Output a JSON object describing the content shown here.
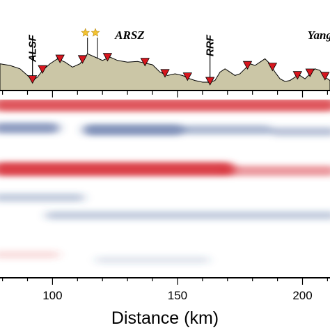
{
  "chart_data": [
    {
      "type": "area",
      "panel": "topography",
      "xlim": [
        79,
        211
      ],
      "fill_color": "#cbc6a6",
      "line_color": "#000000",
      "profile": {
        "x": [
          79,
          83,
          87,
          90,
          92,
          94,
          96,
          99,
          102,
          105,
          108,
          111,
          114,
          117,
          120,
          123,
          126,
          130,
          134,
          137,
          140,
          143,
          146,
          149,
          152,
          155,
          157,
          160,
          163,
          165,
          167,
          169,
          171,
          173,
          175,
          177,
          179,
          181,
          183,
          185,
          187,
          189,
          191,
          193,
          195,
          197,
          199,
          201,
          203,
          205,
          207,
          209,
          211
        ],
        "elevation": [
          0.55,
          0.5,
          0.4,
          0.2,
          0.05,
          0.15,
          0.35,
          0.55,
          0.7,
          0.6,
          0.45,
          0.55,
          0.85,
          0.75,
          0.65,
          0.75,
          0.65,
          0.6,
          0.62,
          0.57,
          0.52,
          0.3,
          0.2,
          0.25,
          0.2,
          0.1,
          0.05,
          0.0,
          0.0,
          0.05,
          0.3,
          0.4,
          0.3,
          0.2,
          0.25,
          0.4,
          0.55,
          0.5,
          0.6,
          0.7,
          0.55,
          0.3,
          0.1,
          0.02,
          0.05,
          0.15,
          0.2,
          0.1,
          0.25,
          0.4,
          0.35,
          0.15,
          0.05
        ]
      },
      "stations": [
        92,
        96,
        103,
        112,
        122,
        137,
        145,
        154,
        163,
        178,
        188,
        198,
        203,
        209
      ],
      "station_marker": "inverted-triangle",
      "station_color": "#d7161e",
      "volcano_markers": [
        114,
        118
      ],
      "volcano_color": "#f4c430",
      "faults": [
        {
          "label": "ALSF",
          "x": 92
        },
        {
          "label": "RRF",
          "x": 163
        }
      ],
      "regions": [
        {
          "label": "ARSZ",
          "x": 125
        },
        {
          "label": "Yang",
          "x": 202
        }
      ]
    },
    {
      "type": "heatmap",
      "panel": "receiver-function section",
      "xlabel": "Distance (km)",
      "xlim": [
        79,
        211
      ],
      "xticks": [
        100,
        150,
        200
      ],
      "xtick_labels": [
        "100",
        "150",
        "200"
      ],
      "colormap": {
        "positive": "#d8343c",
        "negative": "#33508f",
        "zero": "#ffffff"
      },
      "bands": [
        {
          "depth": 0.03,
          "x": [
            79,
            211
          ],
          "amplitude": 0.75
        },
        {
          "depth": 0.16,
          "x": [
            79,
            100
          ],
          "amplitude": -0.5
        },
        {
          "depth": 0.17,
          "x": [
            115,
            150
          ],
          "amplitude": -0.55
        },
        {
          "depth": 0.17,
          "x": [
            155,
            185
          ],
          "amplitude": -0.35
        },
        {
          "depth": 0.18,
          "x": [
            190,
            211
          ],
          "amplitude": -0.3
        },
        {
          "depth": 0.39,
          "x": [
            79,
            170
          ],
          "amplitude": 0.85
        },
        {
          "depth": 0.4,
          "x": [
            170,
            211
          ],
          "amplitude": 0.45
        },
        {
          "depth": 0.55,
          "x": [
            79,
            110
          ],
          "amplitude": -0.25
        },
        {
          "depth": 0.65,
          "x": [
            100,
            211
          ],
          "amplitude": -0.25
        },
        {
          "depth": 0.87,
          "x": [
            79,
            100
          ],
          "amplitude": 0.15
        },
        {
          "depth": 0.9,
          "x": [
            120,
            160
          ],
          "amplitude": -0.12
        }
      ]
    }
  ]
}
